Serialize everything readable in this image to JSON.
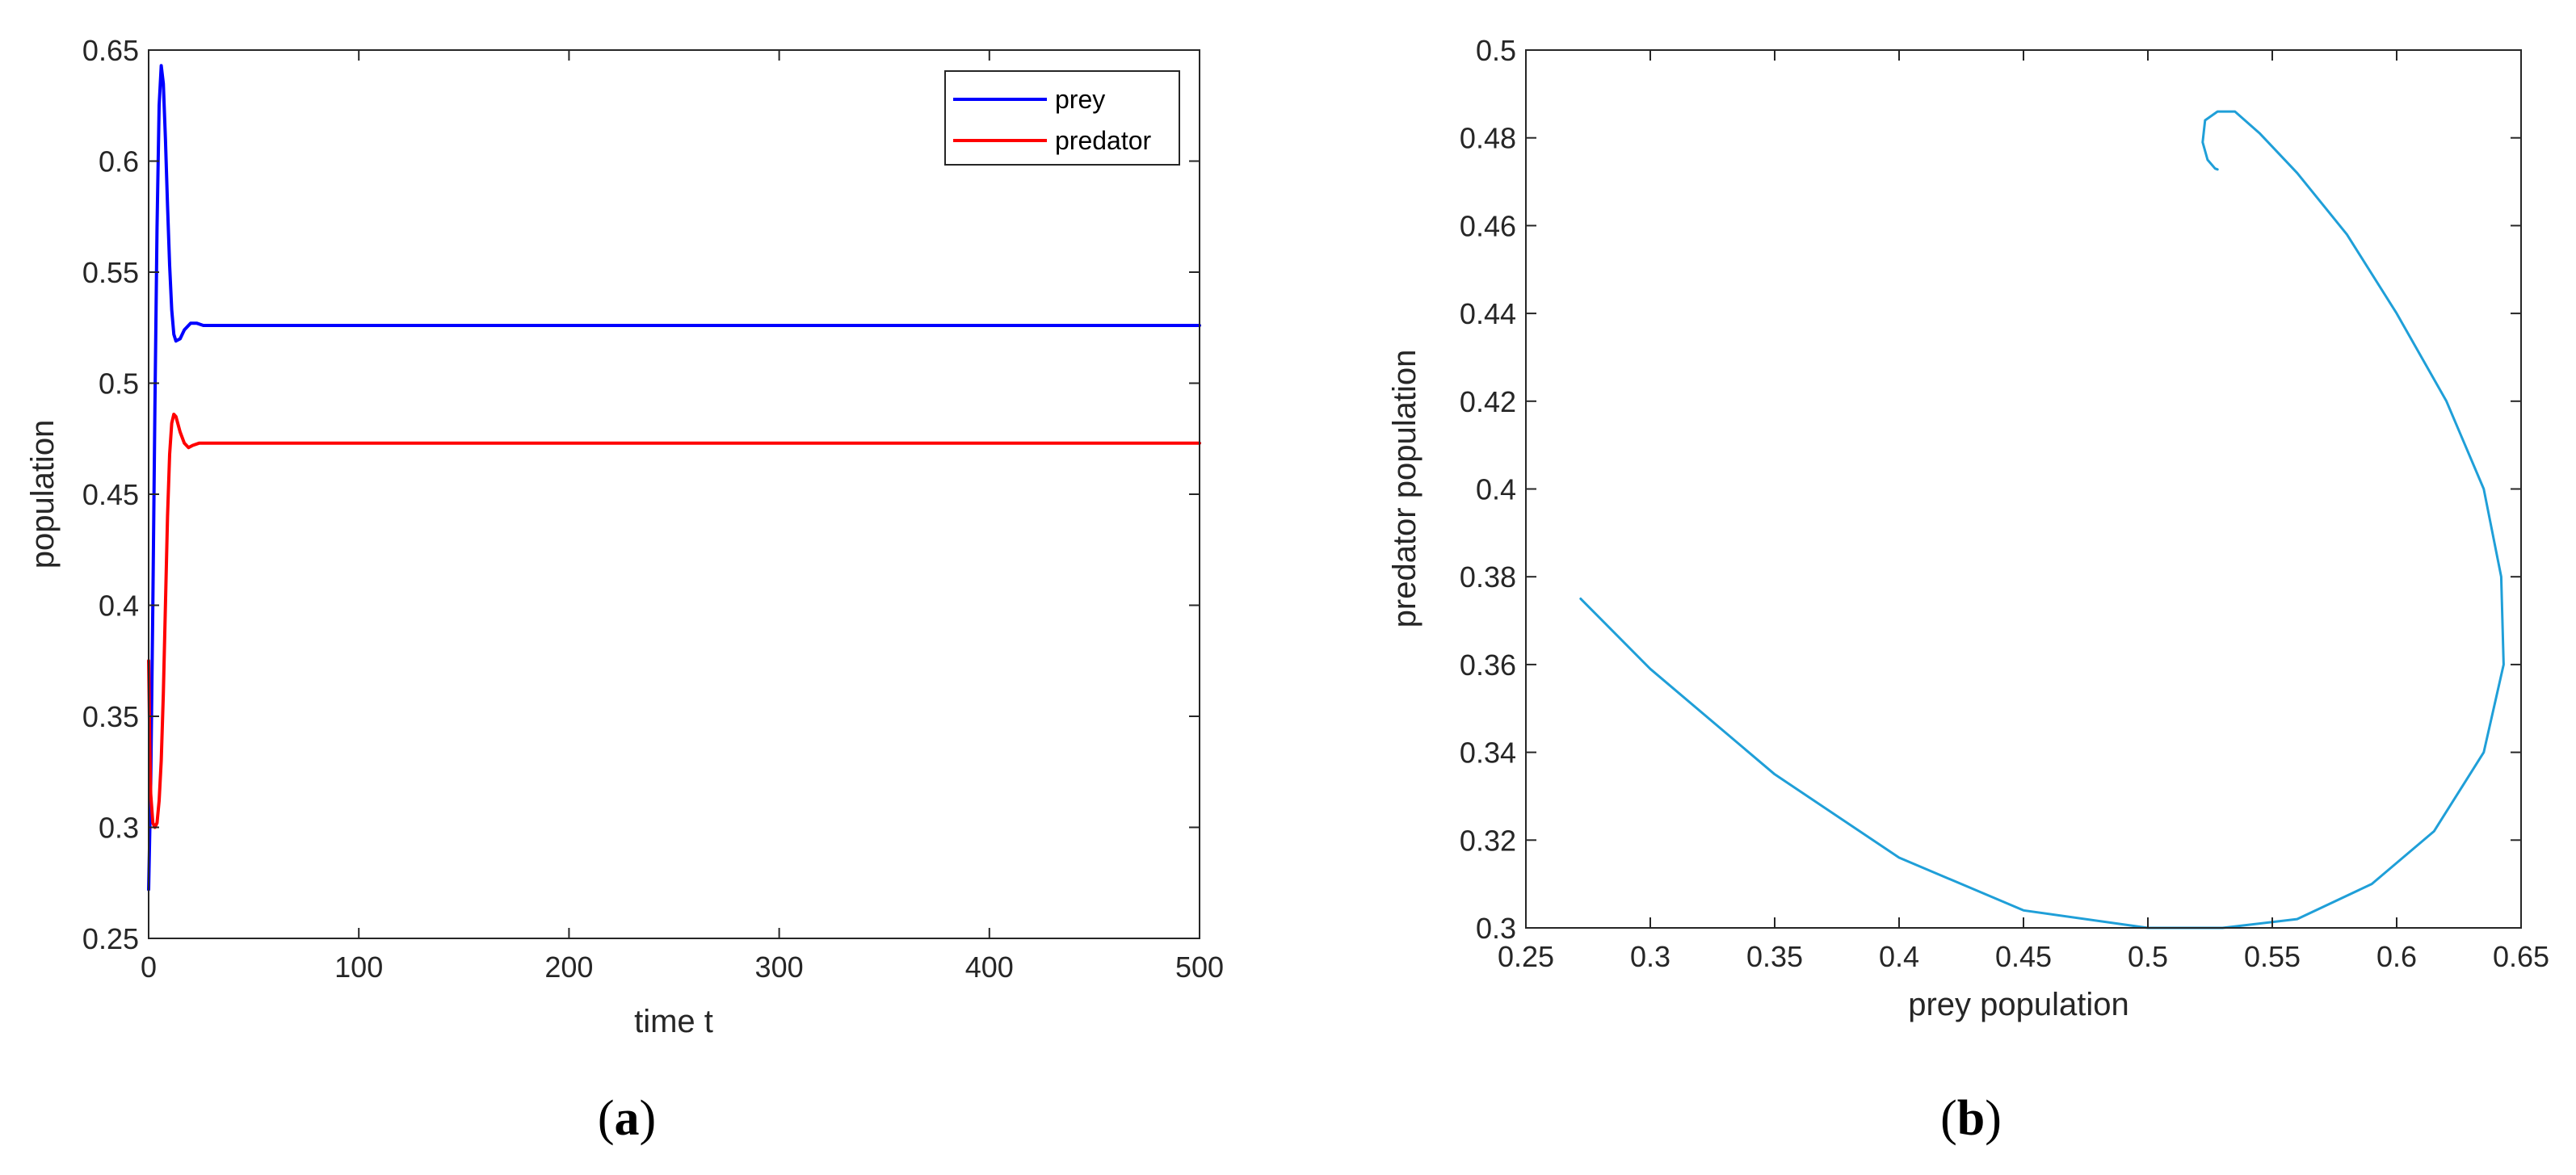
{
  "chart_data": [
    {
      "panel": "(a)",
      "panel_letter": "a",
      "type": "line",
      "xlabel": "time t",
      "ylabel": "population",
      "xlim": [
        0,
        500
      ],
      "ylim": [
        0.25,
        0.65
      ],
      "xticks": [
        0,
        100,
        200,
        300,
        400,
        500
      ],
      "xtick_labels": [
        "0",
        "100",
        "200",
        "300",
        "400",
        "500"
      ],
      "yticks": [
        0.25,
        0.3,
        0.35,
        0.4,
        0.45,
        0.5,
        0.55,
        0.6,
        0.65
      ],
      "ytick_labels": [
        "0.25",
        "0.3",
        "0.35",
        "0.4",
        "0.45",
        "0.5",
        "0.55",
        "0.6",
        "0.65"
      ],
      "grid": false,
      "legend_position": "top-right",
      "series": [
        {
          "name": "prey",
          "color": "#0000ff",
          "x": [
            0,
            1,
            2,
            3,
            4,
            5,
            6,
            7,
            8,
            9,
            10,
            11,
            12,
            13,
            15,
            17,
            20,
            23,
            26,
            30,
            35,
            40,
            60,
            100,
            200,
            300,
            400,
            500
          ],
          "y": [
            0.272,
            0.32,
            0.4,
            0.49,
            0.57,
            0.625,
            0.643,
            0.635,
            0.61,
            0.58,
            0.553,
            0.533,
            0.522,
            0.519,
            0.52,
            0.524,
            0.527,
            0.527,
            0.526,
            0.526,
            0.526,
            0.526,
            0.526,
            0.526,
            0.526,
            0.526,
            0.526,
            0.526
          ]
        },
        {
          "name": "predator",
          "color": "#ff0000",
          "x": [
            0,
            0.5,
            1,
            2,
            3,
            4,
            5,
            6,
            7,
            8,
            9,
            10,
            11,
            12,
            13,
            15,
            17,
            19,
            21,
            24,
            27,
            30,
            35,
            40,
            60,
            100,
            200,
            300,
            400,
            500
          ],
          "y": [
            0.375,
            0.34,
            0.315,
            0.302,
            0.3,
            0.302,
            0.312,
            0.33,
            0.36,
            0.4,
            0.44,
            0.468,
            0.482,
            0.486,
            0.485,
            0.478,
            0.473,
            0.471,
            0.472,
            0.473,
            0.473,
            0.473,
            0.473,
            0.473,
            0.473,
            0.473,
            0.473,
            0.473,
            0.473,
            0.473
          ]
        }
      ]
    },
    {
      "panel": "(b)",
      "panel_letter": "b",
      "type": "line",
      "xlabel": "prey population",
      "ylabel": "predator population",
      "xlim": [
        0.25,
        0.65
      ],
      "ylim": [
        0.3,
        0.5
      ],
      "xticks": [
        0.25,
        0.3,
        0.35,
        0.4,
        0.45,
        0.5,
        0.55,
        0.6,
        0.65
      ],
      "xtick_labels": [
        "0.25",
        "0.3",
        "0.35",
        "0.4",
        "0.45",
        "0.5",
        "0.55",
        "0.6",
        "0.65"
      ],
      "yticks": [
        0.3,
        0.32,
        0.34,
        0.36,
        0.38,
        0.4,
        0.42,
        0.44,
        0.46,
        0.48,
        0.5
      ],
      "ytick_labels": [
        "0.3",
        "0.32",
        "0.34",
        "0.36",
        "0.38",
        "0.4",
        "0.42",
        "0.44",
        "0.46",
        "0.48",
        "0.5"
      ],
      "grid": false,
      "series": [
        {
          "color": "#1f9fd8",
          "x": [
            0.272,
            0.3,
            0.35,
            0.4,
            0.45,
            0.5,
            0.53,
            0.56,
            0.59,
            0.615,
            0.635,
            0.643,
            0.642,
            0.635,
            0.62,
            0.6,
            0.58,
            0.56,
            0.545,
            0.535,
            0.528,
            0.523,
            0.522,
            0.524,
            0.527,
            0.528,
            0.527
          ],
          "y": [
            0.375,
            0.359,
            0.335,
            0.316,
            0.304,
            0.3,
            0.3,
            0.302,
            0.31,
            0.322,
            0.34,
            0.36,
            0.38,
            0.4,
            0.42,
            0.44,
            0.458,
            0.472,
            0.481,
            0.486,
            0.486,
            0.484,
            0.479,
            0.475,
            0.473,
            0.4728,
            0.473
          ]
        }
      ]
    }
  ]
}
